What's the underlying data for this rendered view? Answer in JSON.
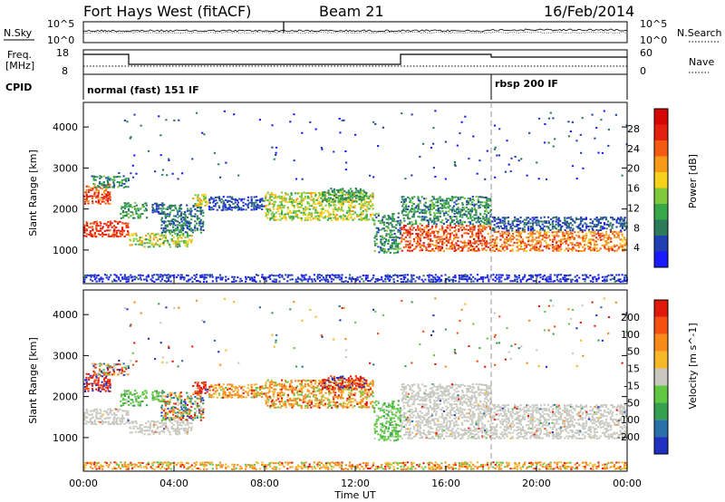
{
  "header": {
    "station": "Fort Hays West (fitACF)",
    "beam": "Beam 21",
    "date": "16/Feb/2014"
  },
  "top_panels": {
    "noise": {
      "left_label": "N.Sky",
      "right_label": "N.Search",
      "left_ticks": [
        "10^5",
        "10^0"
      ],
      "right_ticks": [
        "10^5",
        "10^0"
      ]
    },
    "freq": {
      "left_label_1": "Freq.",
      "left_label_2": "[MHz]",
      "right_label": "Nave",
      "left_ticks": [
        "18",
        "8"
      ],
      "right_ticks": [
        "60",
        "0"
      ]
    },
    "cpid": {
      "label": "CPID",
      "mode_1": "normal (fast) 151 IF",
      "mode_2": "rbsp 200 IF"
    }
  },
  "chart_data": [
    {
      "type": "heatmap",
      "name": "power",
      "ylabel": "Slant Range [km]",
      "xlabel": "",
      "xlim": [
        0,
        24
      ],
      "ylim": [
        180,
        4600
      ],
      "yticks": [
        "1000",
        "2000",
        "3000",
        "4000"
      ],
      "colorbar": {
        "label": "Power [dB]",
        "ticks": [
          "4",
          "8",
          "12",
          "16",
          "20",
          "24",
          "28"
        ],
        "colors": [
          "#1a1aff",
          "#1f3fb2",
          "#2b7a5a",
          "#37a84a",
          "#7ec83a",
          "#f7d21a",
          "#f79a18",
          "#f55a12",
          "#e4200e",
          "#d60606"
        ]
      }
    },
    {
      "type": "heatmap",
      "name": "velocity",
      "ylabel": "Slant Range [km]",
      "xlabel": "Time UT",
      "xlim": [
        0,
        24
      ],
      "ylim": [
        180,
        4600
      ],
      "yticks": [
        "1000",
        "2000",
        "3000",
        "4000"
      ],
      "xticks": [
        "00:00",
        "04:00",
        "08:00",
        "12:00",
        "16:00",
        "20:00",
        "00:00"
      ],
      "colorbar": {
        "label": "Velocity [m s^-1]",
        "ticks": [
          "200",
          "100",
          "50",
          "15",
          "-15",
          "-50",
          "-100",
          "-200"
        ],
        "colors": [
          "#2030c0",
          "#2a70a8",
          "#35a050",
          "#5fc840",
          "#c8c8c0",
          "#f7b828",
          "#f78a18",
          "#f55010",
          "#e01a0a"
        ]
      }
    }
  ]
}
